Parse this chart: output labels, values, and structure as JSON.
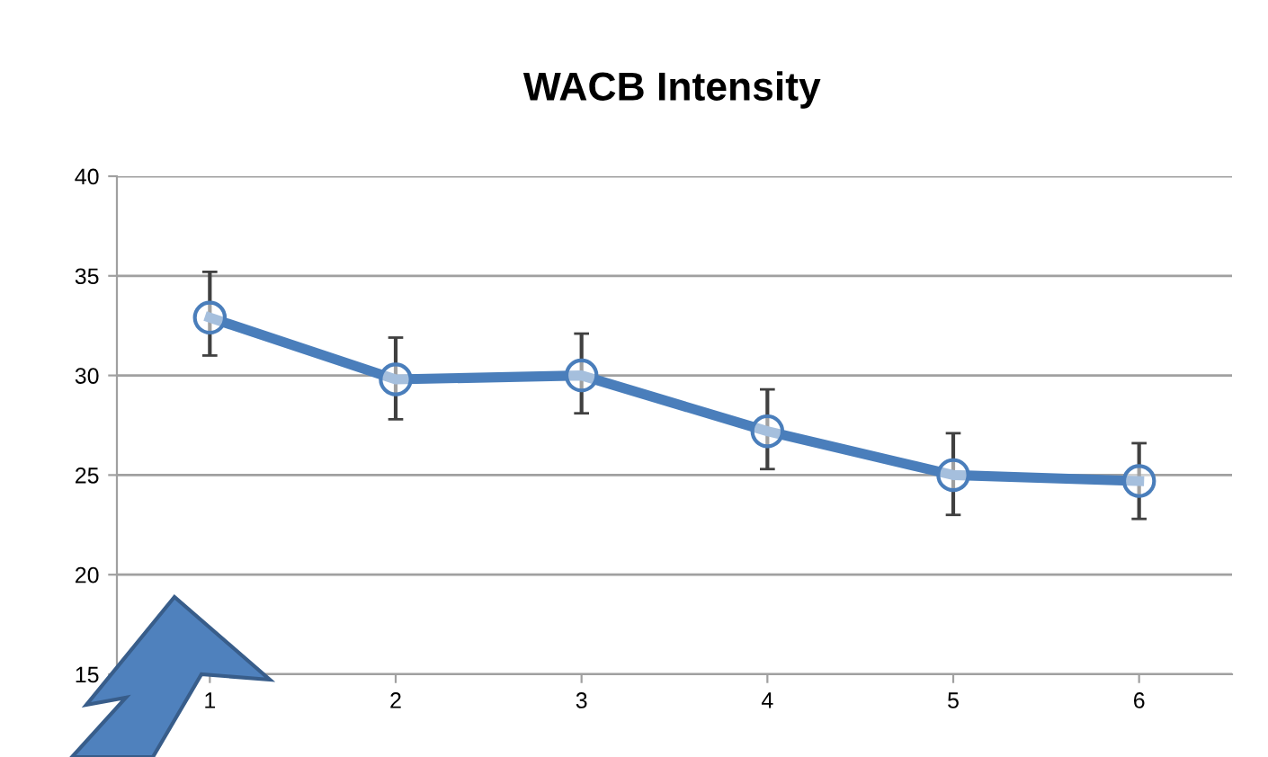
{
  "chart_data": {
    "type": "line",
    "title": "WACB Intensity",
    "categories": [
      "1",
      "2",
      "3",
      "4",
      "5",
      "6"
    ],
    "series": [
      {
        "color": "#4a7ebb",
        "values": [
          32.9,
          29.8,
          30.0,
          27.2,
          25.0,
          24.7
        ],
        "errors": [
          [
            31.0,
            35.2
          ],
          [
            27.8,
            31.9
          ],
          [
            28.1,
            32.1
          ],
          [
            25.3,
            29.3
          ],
          [
            23.0,
            27.1
          ],
          [
            22.8,
            26.6
          ]
        ]
      }
    ],
    "ylim": [
      15,
      40
    ],
    "yticks": [
      15,
      20,
      25,
      30,
      35,
      40
    ],
    "grid": "y",
    "marker": "circle",
    "line_style": "solid",
    "legend": false
  }
}
